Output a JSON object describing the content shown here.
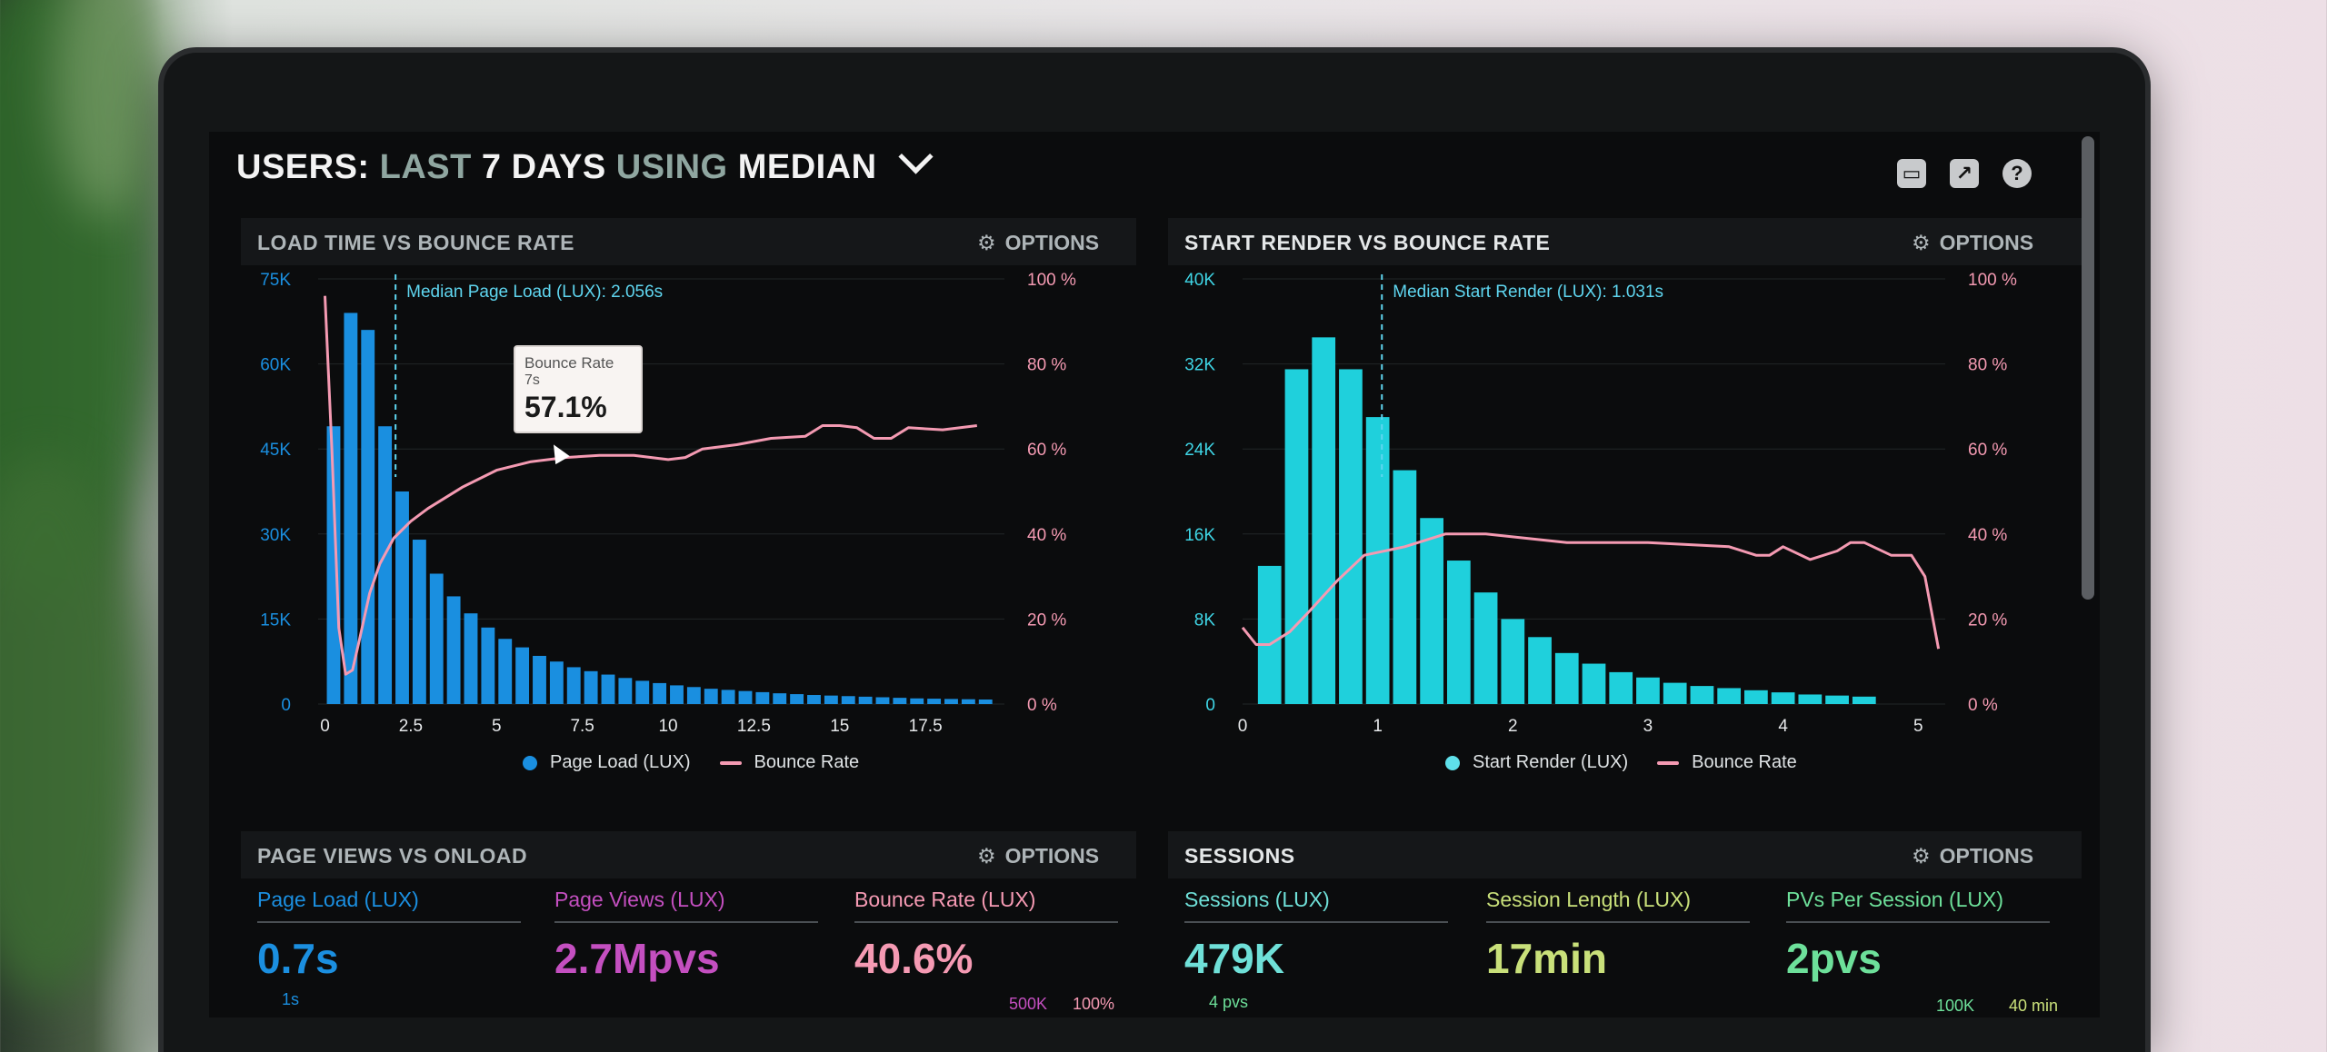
{
  "header": {
    "title_parts": [
      "USERS:",
      "LAST",
      "7 DAYS",
      "USING",
      "MEDIAN"
    ],
    "icons": [
      "monitor-icon",
      "share-icon",
      "help-icon"
    ]
  },
  "options_label": "OPTIONS",
  "panels": {
    "load_time": {
      "title": "LOAD TIME VS BOUNCE RATE",
      "median_label": "Median Page Load (LUX): 2.056s",
      "legend": [
        "Page Load (LUX)",
        "Bounce Rate"
      ],
      "tooltip": {
        "title": "Bounce Rate",
        "sub": "7s",
        "value": "57.1%"
      }
    },
    "start_render": {
      "title": "START RENDER VS BOUNCE RATE",
      "median_label": "Median Start Render (LUX): 1.031s",
      "legend": [
        "Start Render (LUX)",
        "Bounce Rate"
      ]
    },
    "page_views": {
      "title": "PAGE VIEWS VS ONLOAD",
      "metrics": [
        {
          "label": "Page Load (LUX)",
          "value": "0.7s",
          "color": "#1b8fe0"
        },
        {
          "label": "Page Views (LUX)",
          "value": "2.7Mpvs",
          "color": "#c44fc0"
        },
        {
          "label": "Bounce Rate (LUX)",
          "value": "40.6%",
          "color": "#f59ab3"
        }
      ],
      "footer": [
        "1s",
        "500K",
        "100%"
      ]
    },
    "sessions": {
      "title": "SESSIONS",
      "metrics": [
        {
          "label": "Sessions (LUX)",
          "value": "479K",
          "color": "#6fe0d8"
        },
        {
          "label": "Session Length (LUX)",
          "value": "17min",
          "color": "#c9e07a"
        },
        {
          "label": "PVs Per Session (LUX)",
          "value": "2pvs",
          "color": "#6de09a"
        }
      ],
      "footer": [
        "4 pvs",
        "100K",
        "40 min"
      ]
    }
  },
  "chart_data": [
    {
      "type": "bar",
      "title": "LOAD TIME VS BOUNCE RATE",
      "x_ticks": [
        "0",
        "2.5",
        "5",
        "7.5",
        "10",
        "12.5",
        "15",
        "17.5"
      ],
      "y_ticks_left": [
        "75K",
        "60K",
        "45K",
        "30K",
        "15K",
        "0"
      ],
      "y_ticks_right": [
        "100 %",
        "80 %",
        "60 %",
        "40 %",
        "20 %",
        "0 %"
      ],
      "xlim": [
        -0.2,
        19.8
      ],
      "ylim_left": [
        0,
        75000
      ],
      "ylim_right": [
        0,
        100
      ],
      "median_x": 2.056,
      "bar_color": "#1a8fe0",
      "line_color": "#f49ab2",
      "series": [
        {
          "name": "Page Load (LUX)",
          "x_start": 0,
          "bin_width": 0.5,
          "values": [
            49000,
            69000,
            66000,
            49000,
            37500,
            29000,
            23000,
            19000,
            16000,
            13500,
            11500,
            10000,
            8500,
            7500,
            6500,
            5800,
            5200,
            4600,
            4100,
            3700,
            3300,
            3000,
            2700,
            2500,
            2300,
            2100,
            1900,
            1750,
            1600,
            1500,
            1400,
            1300,
            1200,
            1100,
            1000,
            950,
            900,
            850,
            800
          ]
        },
        {
          "name": "Bounce Rate",
          "x": [
            0,
            0.2,
            0.4,
            0.6,
            0.8,
            1.0,
            1.3,
            1.6,
            2.0,
            2.5,
            3.0,
            4.0,
            5.0,
            6.0,
            7.0,
            8.0,
            9.0,
            10.0,
            10.5,
            11.0,
            12.0,
            13.0,
            14.0,
            14.5,
            15.0,
            15.5,
            16.0,
            16.5,
            17.0,
            18.0,
            19.0
          ],
          "values": [
            96,
            60,
            18,
            7,
            8,
            15,
            26,
            33,
            39,
            43,
            46,
            51,
            55,
            57,
            58,
            58.5,
            58.5,
            57.5,
            58,
            60,
            61,
            62.5,
            63,
            65.5,
            65.5,
            65,
            62.5,
            62.5,
            65,
            64.5,
            65.5
          ]
        }
      ],
      "legend": [
        "Page Load (LUX)",
        "Bounce Rate"
      ]
    },
    {
      "type": "bar",
      "title": "START RENDER VS BOUNCE RATE",
      "x_ticks": [
        "0",
        "1",
        "2",
        "3",
        "4",
        "5"
      ],
      "y_ticks_left": [
        "40K",
        "32K",
        "24K",
        "16K",
        "8K",
        "0"
      ],
      "y_ticks_right": [
        "100 %",
        "80 %",
        "60 %",
        "40 %",
        "20 %",
        "0 %"
      ],
      "xlim": [
        0,
        5.2
      ],
      "ylim_left": [
        0,
        40000
      ],
      "ylim_right": [
        0,
        100
      ],
      "median_x": 1.031,
      "bar_color": "#1fd0dc",
      "line_color": "#f49ab2",
      "series": [
        {
          "name": "Start Render (LUX)",
          "x_start": 0.1,
          "bin_width": 0.2,
          "values": [
            13000,
            31500,
            34500,
            31500,
            27000,
            22000,
            17500,
            13500,
            10500,
            8000,
            6300,
            4800,
            3800,
            3000,
            2500,
            2000,
            1700,
            1500,
            1300,
            1100,
            900,
            800,
            700
          ]
        },
        {
          "name": "Bounce Rate",
          "x": [
            0,
            0.1,
            0.2,
            0.35,
            0.5,
            0.7,
            0.9,
            1.2,
            1.5,
            1.8,
            2.1,
            2.4,
            2.7,
            3.0,
            3.3,
            3.6,
            3.8,
            3.9,
            4.0,
            4.2,
            4.4,
            4.5,
            4.6,
            4.8,
            4.95,
            5.05,
            5.15
          ],
          "values": [
            18,
            14,
            14,
            17,
            22,
            29,
            35,
            37,
            40,
            40,
            39,
            38,
            38,
            38,
            37.5,
            37,
            35,
            35,
            37,
            34,
            36,
            38,
            38,
            35,
            35,
            30,
            13
          ]
        }
      ],
      "legend": [
        "Start Render (LUX)",
        "Bounce Rate"
      ]
    }
  ]
}
